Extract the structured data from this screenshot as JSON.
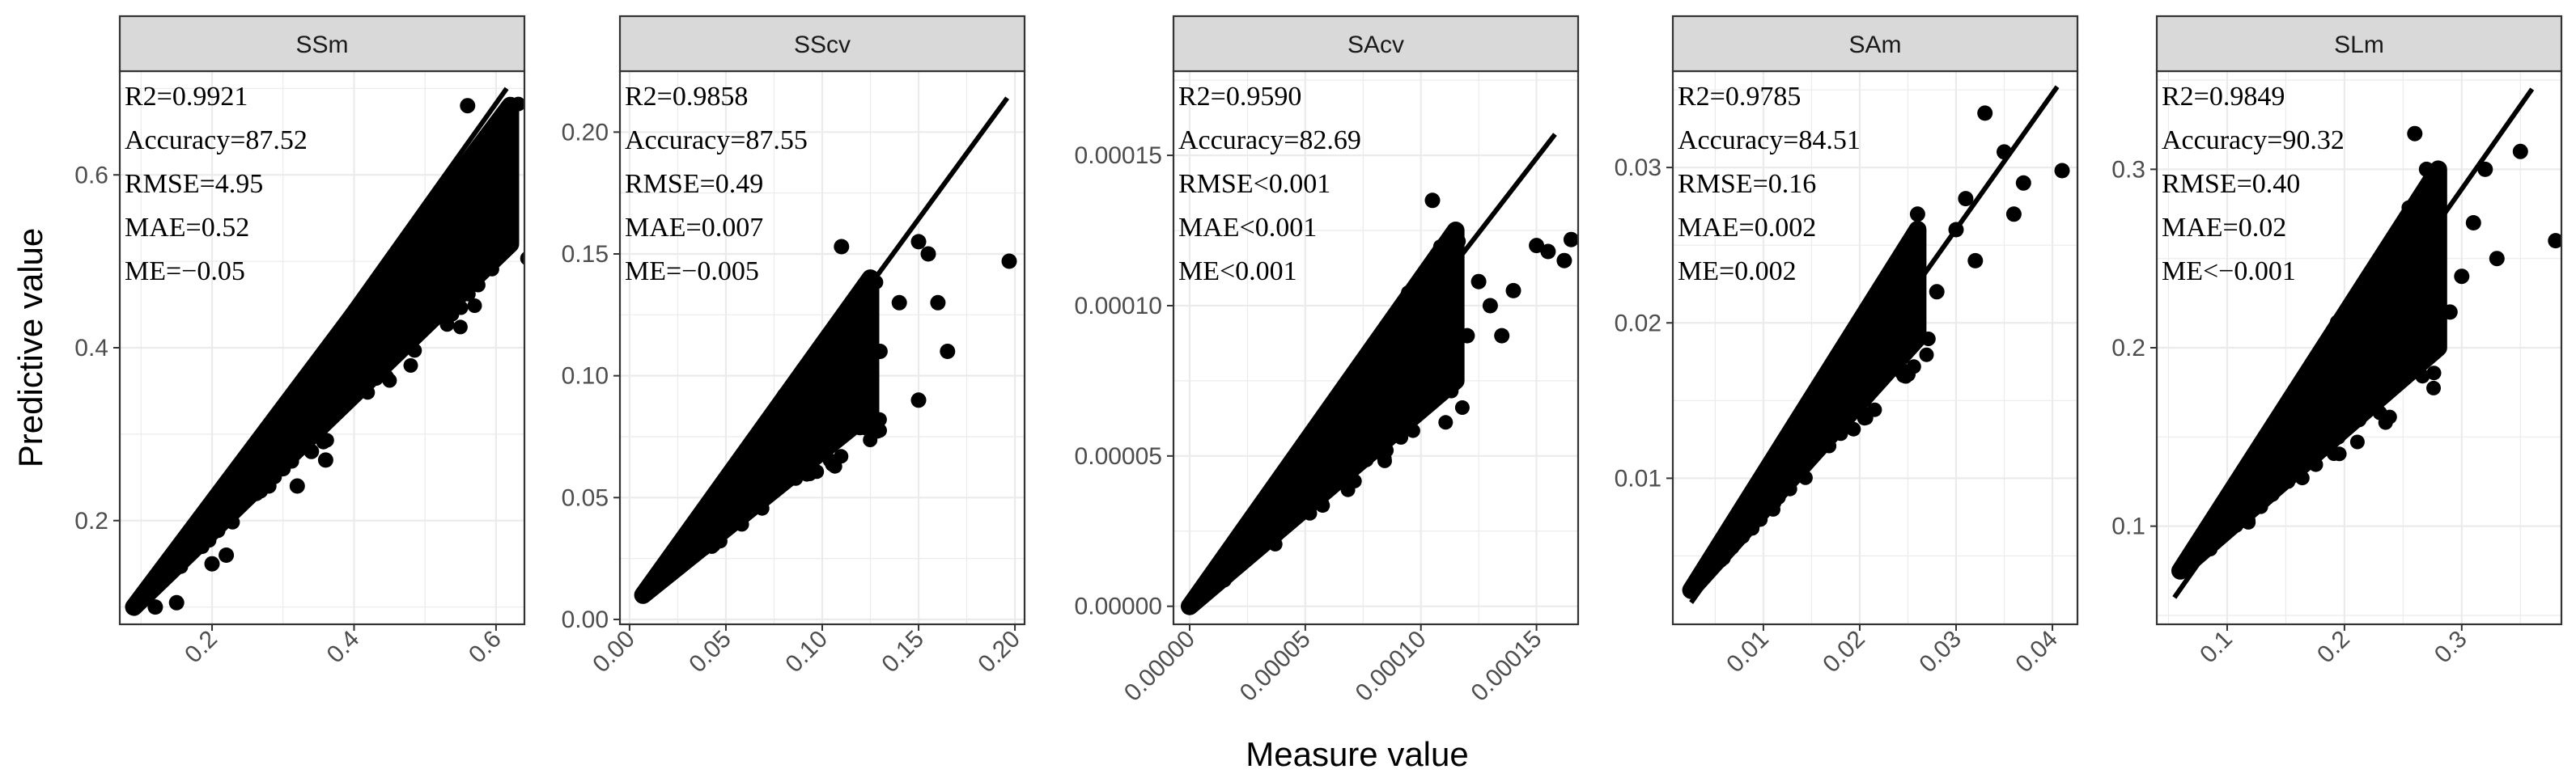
{
  "chart_data": {
    "type": "scatter",
    "xlabel": "Measure value",
    "ylabel": "Predictive value",
    "colors": {
      "points": "#000000",
      "fit_line": "#000000",
      "strip_fill": "#d9d9d9",
      "grid": "#ebebeb",
      "panel_border": "#333333",
      "tick_text": "#4d4d4d"
    },
    "panels": [
      {
        "title": "SSm",
        "xlim": [
          0.07,
          0.64
        ],
        "ylim": [
          0.08,
          0.72
        ],
        "xticks": [
          0.2,
          0.4,
          0.6
        ],
        "xtick_labels": [
          "0.2",
          "0.4",
          "0.6"
        ],
        "yticks": [
          0.2,
          0.4,
          0.6
        ],
        "ytick_labels": [
          "0.2",
          "0.4",
          "0.6"
        ],
        "stats": [
          "R2=0.9921",
          "Accuracy=87.52",
          "RMSE=4.95",
          "MAE=0.52",
          "ME=−0.05"
        ],
        "fit_line": [
          [
            0.09,
            0.095
          ],
          [
            0.615,
            0.7
          ]
        ],
        "cloud": {
          "xmin": 0.09,
          "xmax": 0.62,
          "lower_at_max": 0.52,
          "upper_at_max": 0.68,
          "start_y": 0.1
        },
        "outliers": [
          [
            0.12,
            0.1
          ],
          [
            0.15,
            0.105
          ],
          [
            0.2,
            0.15
          ],
          [
            0.22,
            0.16
          ],
          [
            0.28,
            0.24
          ],
          [
            0.3,
            0.26
          ],
          [
            0.32,
            0.24
          ],
          [
            0.34,
            0.28
          ],
          [
            0.36,
            0.27
          ],
          [
            0.55,
            0.46
          ],
          [
            0.58,
            0.5
          ],
          [
            0.6,
            0.58
          ],
          [
            0.62,
            0.66
          ],
          [
            0.56,
            0.68
          ]
        ]
      },
      {
        "title": "SScv",
        "xlim": [
          -0.005,
          0.205
        ],
        "ylim": [
          -0.002,
          0.225
        ],
        "xticks": [
          0.0,
          0.05,
          0.1,
          0.15,
          0.2
        ],
        "xtick_labels": [
          "0.00",
          "0.05",
          "0.10",
          "0.15",
          "0.20"
        ],
        "yticks": [
          0.0,
          0.05,
          0.1,
          0.15,
          0.2
        ],
        "ytick_labels": [
          "0.00",
          "0.05",
          "0.10",
          "0.15",
          "0.20"
        ],
        "stats": [
          "R2=0.9858",
          "Accuracy=87.55",
          "RMSE=0.49",
          "MAE=0.007",
          "ME=−0.005"
        ],
        "fit_line": [
          [
            0.007,
            0.01
          ],
          [
            0.196,
            0.214
          ]
        ],
        "cloud": {
          "xmin": 0.007,
          "xmax": 0.125,
          "lower_at_max": 0.085,
          "upper_at_max": 0.14,
          "start_y": 0.01
        },
        "outliers": [
          [
            0.197,
            0.147
          ],
          [
            0.16,
            0.13
          ],
          [
            0.15,
            0.155
          ],
          [
            0.155,
            0.15
          ],
          [
            0.14,
            0.13
          ],
          [
            0.13,
            0.11
          ],
          [
            0.165,
            0.11
          ],
          [
            0.15,
            0.09
          ],
          [
            0.12,
            0.08
          ],
          [
            0.11,
            0.153
          ]
        ]
      },
      {
        "title": "SAcv",
        "xlim": [
          -7e-06,
          0.000168
        ],
        "ylim": [
          -6e-06,
          0.000178
        ],
        "xticks": [
          0.0,
          5e-05,
          0.0001,
          0.00015
        ],
        "xtick_labels": [
          "0.00000",
          "0.00005",
          "0.00010",
          "0.00015"
        ],
        "yticks": [
          0.0,
          5e-05,
          0.0001,
          0.00015
        ],
        "ytick_labels": [
          "0.00000",
          "0.00005",
          "0.00010",
          "0.00015"
        ],
        "stats": [
          "R2=0.9590",
          "Accuracy=82.69",
          "RMSE<0.001",
          "MAE<0.001",
          "ME<0.001"
        ],
        "fit_line": [
          [
            0.0,
            0.0
          ],
          [
            0.000158,
            0.000157
          ]
        ],
        "cloud": {
          "xmin": 0.0,
          "xmax": 0.000115,
          "lower_at_max": 7.5e-05,
          "upper_at_max": 0.000125,
          "start_y": 0.0
        },
        "outliers": [
          [
            0.000165,
            0.000122
          ],
          [
            0.000162,
            0.000115
          ],
          [
            0.000155,
            0.000118
          ],
          [
            0.00014,
            0.000105
          ],
          [
            0.00013,
            0.0001
          ],
          [
            0.000125,
            0.000108
          ],
          [
            0.00012,
            9e-05
          ],
          [
            0.000105,
            0.000135
          ],
          [
            0.00015,
            0.00012
          ],
          [
            0.000135,
            9e-05
          ]
        ]
      },
      {
        "title": "SAm",
        "xlim": [
          0.0006,
          0.0426
        ],
        "ylim": [
          0.0006,
          0.0362
        ],
        "xticks": [
          0.01,
          0.02,
          0.03,
          0.04
        ],
        "xtick_labels": [
          "0.01",
          "0.02",
          "0.03",
          "0.04"
        ],
        "yticks": [
          0.01,
          0.02,
          0.03
        ],
        "ytick_labels": [
          "0.01",
          "0.02",
          "0.03"
        ],
        "stats": [
          "R2=0.9785",
          "Accuracy=84.51",
          "RMSE=0.16",
          "MAE=0.002",
          "ME=0.002"
        ],
        "fit_line": [
          [
            0.0025,
            0.002
          ],
          [
            0.0405,
            0.0352
          ]
        ],
        "cloud": {
          "xmin": 0.0025,
          "xmax": 0.026,
          "lower_at_max": 0.019,
          "upper_at_max": 0.026,
          "start_y": 0.0028
        },
        "outliers": [
          [
            0.033,
            0.0335
          ],
          [
            0.041,
            0.0298
          ],
          [
            0.035,
            0.031
          ],
          [
            0.036,
            0.027
          ],
          [
            0.031,
            0.028
          ],
          [
            0.03,
            0.026
          ],
          [
            0.028,
            0.022
          ],
          [
            0.032,
            0.024
          ],
          [
            0.026,
            0.027
          ],
          [
            0.037,
            0.029
          ]
        ]
      },
      {
        "title": "SLm",
        "xlim": [
          0.04,
          0.385
        ],
        "ylim": [
          0.045,
          0.355
        ],
        "xticks": [
          0.1,
          0.2,
          0.3
        ],
        "xtick_labels": [
          "0.1",
          "0.2",
          "0.3"
        ],
        "yticks": [
          0.1,
          0.2,
          0.3
        ],
        "ytick_labels": [
          "0.1",
          "0.2",
          "0.3"
        ],
        "stats": [
          "R2=0.9849",
          "Accuracy=90.32",
          "RMSE=0.40",
          "MAE=0.02",
          "ME<−0.001"
        ],
        "fit_line": [
          [
            0.055,
            0.06
          ],
          [
            0.36,
            0.345
          ]
        ],
        "cloud": {
          "xmin": 0.06,
          "xmax": 0.28,
          "lower_at_max": 0.2,
          "upper_at_max": 0.3,
          "start_y": 0.075
        },
        "outliers": [
          [
            0.38,
            0.26
          ],
          [
            0.35,
            0.31
          ],
          [
            0.33,
            0.25
          ],
          [
            0.32,
            0.3
          ],
          [
            0.3,
            0.24
          ],
          [
            0.31,
            0.27
          ],
          [
            0.29,
            0.22
          ],
          [
            0.26,
            0.32
          ],
          [
            0.27,
            0.3
          ],
          [
            0.28,
            0.25
          ]
        ]
      }
    ]
  }
}
